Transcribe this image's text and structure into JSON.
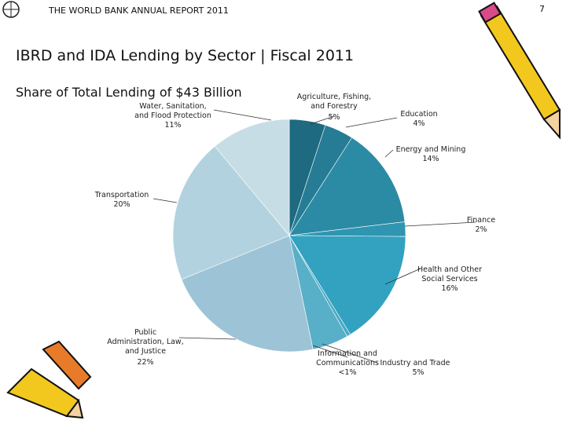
{
  "header": {
    "report": "THE WORLD BANK ANNUAL REPORT 2011",
    "page": "7"
  },
  "chart_data": {
    "type": "pie",
    "title": "IBRD and IDA Lending by Sector | Fiscal 2011",
    "subtitle": "Share of Total Lending of $43 Billion",
    "categories": [
      "Agriculture, Fishing,\nand Forestry",
      "Education",
      "Energy and Mining",
      "Finance",
      "Health and Other\nSocial Services",
      "Information and\nCommunications",
      "Industry and Trade",
      "Public\nAdministration, Law,\nand Justice",
      "Transportation",
      "Water, Sanitation,\nand Flood Protection"
    ],
    "values": [
      5,
      4,
      14,
      2,
      16,
      0.5,
      5,
      22,
      20,
      11
    ],
    "value_labels": [
      "5%",
      "4%",
      "14%",
      "2%",
      "16%",
      "<1%",
      "5%",
      "22%",
      "20%",
      "11%"
    ],
    "colors": [
      "#1e6a80",
      "#267c94",
      "#2b8ba4",
      "#2f95b0",
      "#33a2c0",
      "#4aaac5",
      "#58afc8",
      "#9cc4d6",
      "#b2d2df",
      "#c7dde6"
    ]
  }
}
